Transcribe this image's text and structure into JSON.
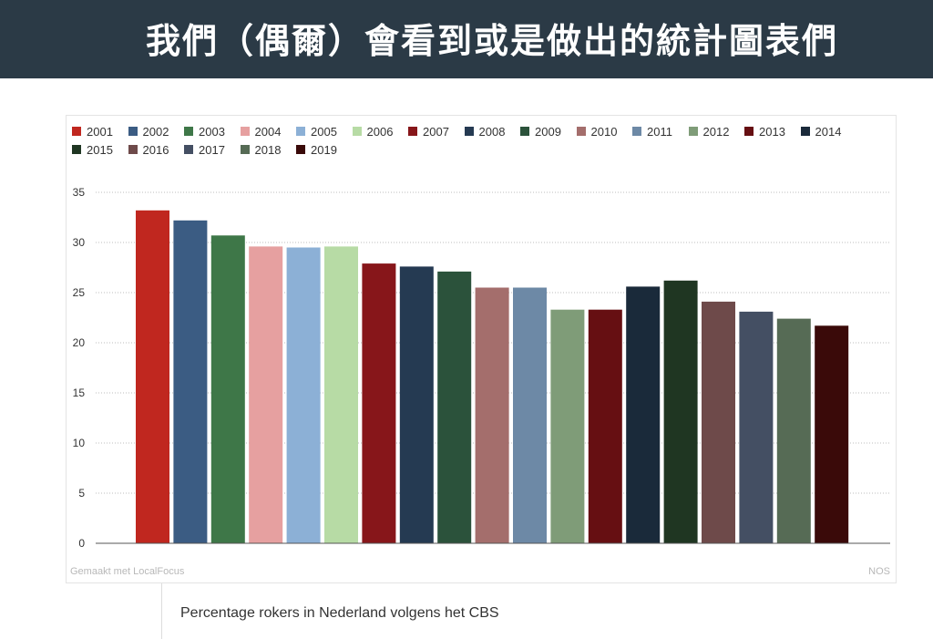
{
  "header": {
    "title": "我們（偶爾）會看到或是做出的統計圖表們"
  },
  "chart_data": {
    "type": "bar",
    "title": "",
    "xlabel": "",
    "ylabel": "",
    "categories": [
      "2001",
      "2002",
      "2003",
      "2004",
      "2005",
      "2006",
      "2007",
      "2008",
      "2009",
      "2010",
      "2011",
      "2012",
      "2013",
      "2014",
      "2015",
      "2016",
      "2017",
      "2018",
      "2019"
    ],
    "values": [
      33.2,
      32.2,
      30.7,
      29.6,
      29.5,
      29.6,
      27.9,
      27.6,
      27.1,
      25.5,
      25.5,
      23.3,
      23.3,
      25.6,
      26.2,
      24.1,
      23.1,
      22.4,
      21.7
    ],
    "colors": [
      "#c0271f",
      "#3b5c83",
      "#3e7748",
      "#e6a0a0",
      "#8cb0d6",
      "#b7dba5",
      "#87161a",
      "#253a52",
      "#2b523b",
      "#a46e6c",
      "#6d89a6",
      "#7f9c78",
      "#660f12",
      "#1a2a3a",
      "#1f3622",
      "#6e4a4a",
      "#444f63",
      "#566b55",
      "#3a0a09"
    ],
    "ylim": [
      0,
      35
    ],
    "yticks": [
      0,
      5,
      10,
      15,
      20,
      25,
      30,
      35
    ],
    "grid": true,
    "legend_position": "top-left",
    "credit_left": "Gemaakt met LocalFocus",
    "credit_right": "NOS"
  },
  "caption": "Percentage rokers in Nederland volgens het CBS"
}
